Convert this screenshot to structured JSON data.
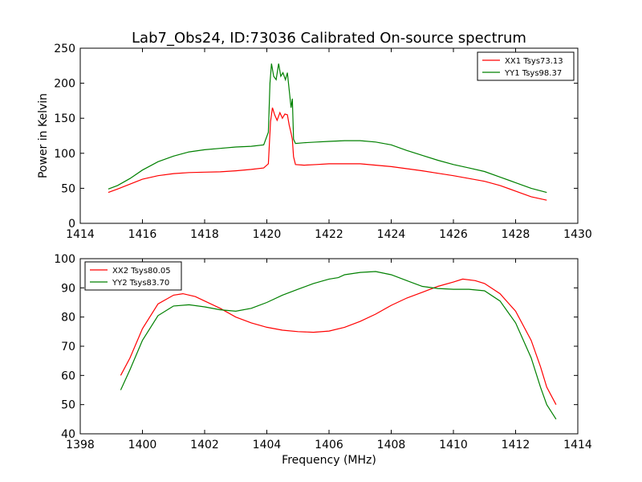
{
  "figure": {
    "title": "Lab7_Obs24, ID:73036 Calibrated On-source spectrum"
  },
  "chart_data": [
    {
      "type": "line",
      "title": "Lab7_Obs24, ID:73036 Calibrated On-source spectrum",
      "xlabel": "",
      "ylabel": "Power in Kelvin",
      "xlim": [
        1414,
        1430
      ],
      "ylim": [
        0,
        250
      ],
      "xticks": [
        1414,
        1416,
        1418,
        1420,
        1422,
        1424,
        1426,
        1428,
        1430
      ],
      "yticks": [
        0,
        50,
        100,
        150,
        200,
        250
      ],
      "grid": false,
      "legend_position": "top-right",
      "series": [
        {
          "name": "XX1 Tsys73.13",
          "color": "#ff0000",
          "points": [
            [
              1414.9,
              44
            ],
            [
              1415.2,
              49
            ],
            [
              1415.6,
              56
            ],
            [
              1416.0,
              63
            ],
            [
              1416.5,
              68
            ],
            [
              1417.0,
              71
            ],
            [
              1417.5,
              72.5
            ],
            [
              1418.0,
              73
            ],
            [
              1418.5,
              73.5
            ],
            [
              1419.0,
              75
            ],
            [
              1419.5,
              77
            ],
            [
              1419.9,
              79
            ],
            [
              1420.05,
              85
            ],
            [
              1420.12,
              145
            ],
            [
              1420.18,
              165
            ],
            [
              1420.25,
              155
            ],
            [
              1420.33,
              147
            ],
            [
              1420.42,
              158
            ],
            [
              1420.5,
              150
            ],
            [
              1420.58,
              156
            ],
            [
              1420.66,
              155
            ],
            [
              1420.72,
              140
            ],
            [
              1420.78,
              129
            ],
            [
              1420.82,
              120
            ],
            [
              1420.86,
              95
            ],
            [
              1420.92,
              84
            ],
            [
              1421.2,
              83
            ],
            [
              1421.6,
              84
            ],
            [
              1422.0,
              85
            ],
            [
              1422.5,
              85
            ],
            [
              1423.0,
              85
            ],
            [
              1423.5,
              83
            ],
            [
              1424.0,
              81
            ],
            [
              1424.5,
              78
            ],
            [
              1425.0,
              75
            ],
            [
              1425.5,
              71.5
            ],
            [
              1426.0,
              68
            ],
            [
              1426.5,
              64
            ],
            [
              1427.0,
              60
            ],
            [
              1427.5,
              54
            ],
            [
              1428.0,
              46
            ],
            [
              1428.5,
              38
            ],
            [
              1429.0,
              33
            ]
          ]
        },
        {
          "name": "YY1 Tsys98.37",
          "color": "#008000",
          "points": [
            [
              1414.9,
              49
            ],
            [
              1415.2,
              54
            ],
            [
              1415.6,
              64
            ],
            [
              1416.0,
              76
            ],
            [
              1416.5,
              88
            ],
            [
              1417.0,
              96
            ],
            [
              1417.5,
              102
            ],
            [
              1418.0,
              105
            ],
            [
              1418.5,
              107
            ],
            [
              1419.0,
              109
            ],
            [
              1419.5,
              110
            ],
            [
              1419.9,
              112
            ],
            [
              1420.05,
              130
            ],
            [
              1420.1,
              200
            ],
            [
              1420.15,
              228
            ],
            [
              1420.22,
              210
            ],
            [
              1420.3,
              205
            ],
            [
              1420.38,
              228
            ],
            [
              1420.45,
              210
            ],
            [
              1420.52,
              215
            ],
            [
              1420.6,
              205
            ],
            [
              1420.66,
              215
            ],
            [
              1420.72,
              190
            ],
            [
              1420.78,
              165
            ],
            [
              1420.82,
              178
            ],
            [
              1420.86,
              120
            ],
            [
              1420.92,
              114
            ],
            [
              1421.2,
              115
            ],
            [
              1421.6,
              116
            ],
            [
              1422.0,
              117
            ],
            [
              1422.5,
              118
            ],
            [
              1423.0,
              118
            ],
            [
              1423.5,
              116
            ],
            [
              1424.0,
              112
            ],
            [
              1424.5,
              104
            ],
            [
              1425.0,
              97
            ],
            [
              1425.5,
              90
            ],
            [
              1426.0,
              84
            ],
            [
              1426.5,
              79
            ],
            [
              1427.0,
              74
            ],
            [
              1427.5,
              66
            ],
            [
              1428.0,
              58
            ],
            [
              1428.5,
              50
            ],
            [
              1429.0,
              44
            ]
          ]
        }
      ]
    },
    {
      "type": "line",
      "title": "",
      "xlabel": "Frequency (MHz)",
      "ylabel": "",
      "xlim": [
        1398,
        1414
      ],
      "ylim": [
        40,
        100
      ],
      "xticks": [
        1398,
        1400,
        1402,
        1404,
        1406,
        1408,
        1410,
        1412,
        1414
      ],
      "yticks": [
        40,
        50,
        60,
        70,
        80,
        90,
        100
      ],
      "grid": false,
      "legend_position": "top-left",
      "series": [
        {
          "name": "XX2 Tsys80.05",
          "color": "#ff0000",
          "points": [
            [
              1399.3,
              60
            ],
            [
              1399.6,
              66
            ],
            [
              1400.0,
              76
            ],
            [
              1400.5,
              84.5
            ],
            [
              1401.0,
              87.5
            ],
            [
              1401.3,
              88
            ],
            [
              1401.7,
              87
            ],
            [
              1402.0,
              85.5
            ],
            [
              1402.5,
              83
            ],
            [
              1403.0,
              80
            ],
            [
              1403.5,
              78
            ],
            [
              1404.0,
              76.5
            ],
            [
              1404.5,
              75.5
            ],
            [
              1405.0,
              75
            ],
            [
              1405.5,
              74.8
            ],
            [
              1406.0,
              75.2
            ],
            [
              1406.5,
              76.5
            ],
            [
              1407.0,
              78.5
            ],
            [
              1407.5,
              81
            ],
            [
              1408.0,
              84
            ],
            [
              1408.5,
              86.5
            ],
            [
              1409.0,
              88.5
            ],
            [
              1409.5,
              90.5
            ],
            [
              1410.0,
              92
            ],
            [
              1410.3,
              93
            ],
            [
              1410.7,
              92.5
            ],
            [
              1411.0,
              91.5
            ],
            [
              1411.5,
              88
            ],
            [
              1412.0,
              82
            ],
            [
              1412.5,
              72
            ],
            [
              1412.8,
              63
            ],
            [
              1413.0,
              56
            ],
            [
              1413.3,
              50
            ]
          ]
        },
        {
          "name": "YY2 Tsys83.70",
          "color": "#008000",
          "points": [
            [
              1399.3,
              55
            ],
            [
              1399.6,
              62
            ],
            [
              1400.0,
              72
            ],
            [
              1400.5,
              80.5
            ],
            [
              1401.0,
              83.8
            ],
            [
              1401.5,
              84.2
            ],
            [
              1402.0,
              83.5
            ],
            [
              1402.5,
              82.5
            ],
            [
              1403.0,
              82
            ],
            [
              1403.5,
              83
            ],
            [
              1404.0,
              85
            ],
            [
              1404.5,
              87.5
            ],
            [
              1405.0,
              89.5
            ],
            [
              1405.5,
              91.5
            ],
            [
              1406.0,
              93
            ],
            [
              1406.3,
              93.5
            ],
            [
              1406.5,
              94.5
            ],
            [
              1407.0,
              95.3
            ],
            [
              1407.5,
              95.6
            ],
            [
              1408.0,
              94.5
            ],
            [
              1408.5,
              92.5
            ],
            [
              1409.0,
              90.5
            ],
            [
              1409.5,
              89.8
            ],
            [
              1410.0,
              89.5
            ],
            [
              1410.5,
              89.5
            ],
            [
              1411.0,
              89
            ],
            [
              1411.5,
              85.5
            ],
            [
              1412.0,
              78
            ],
            [
              1412.5,
              66
            ],
            [
              1412.8,
              56
            ],
            [
              1413.0,
              50
            ],
            [
              1413.3,
              45
            ]
          ]
        }
      ]
    }
  ]
}
